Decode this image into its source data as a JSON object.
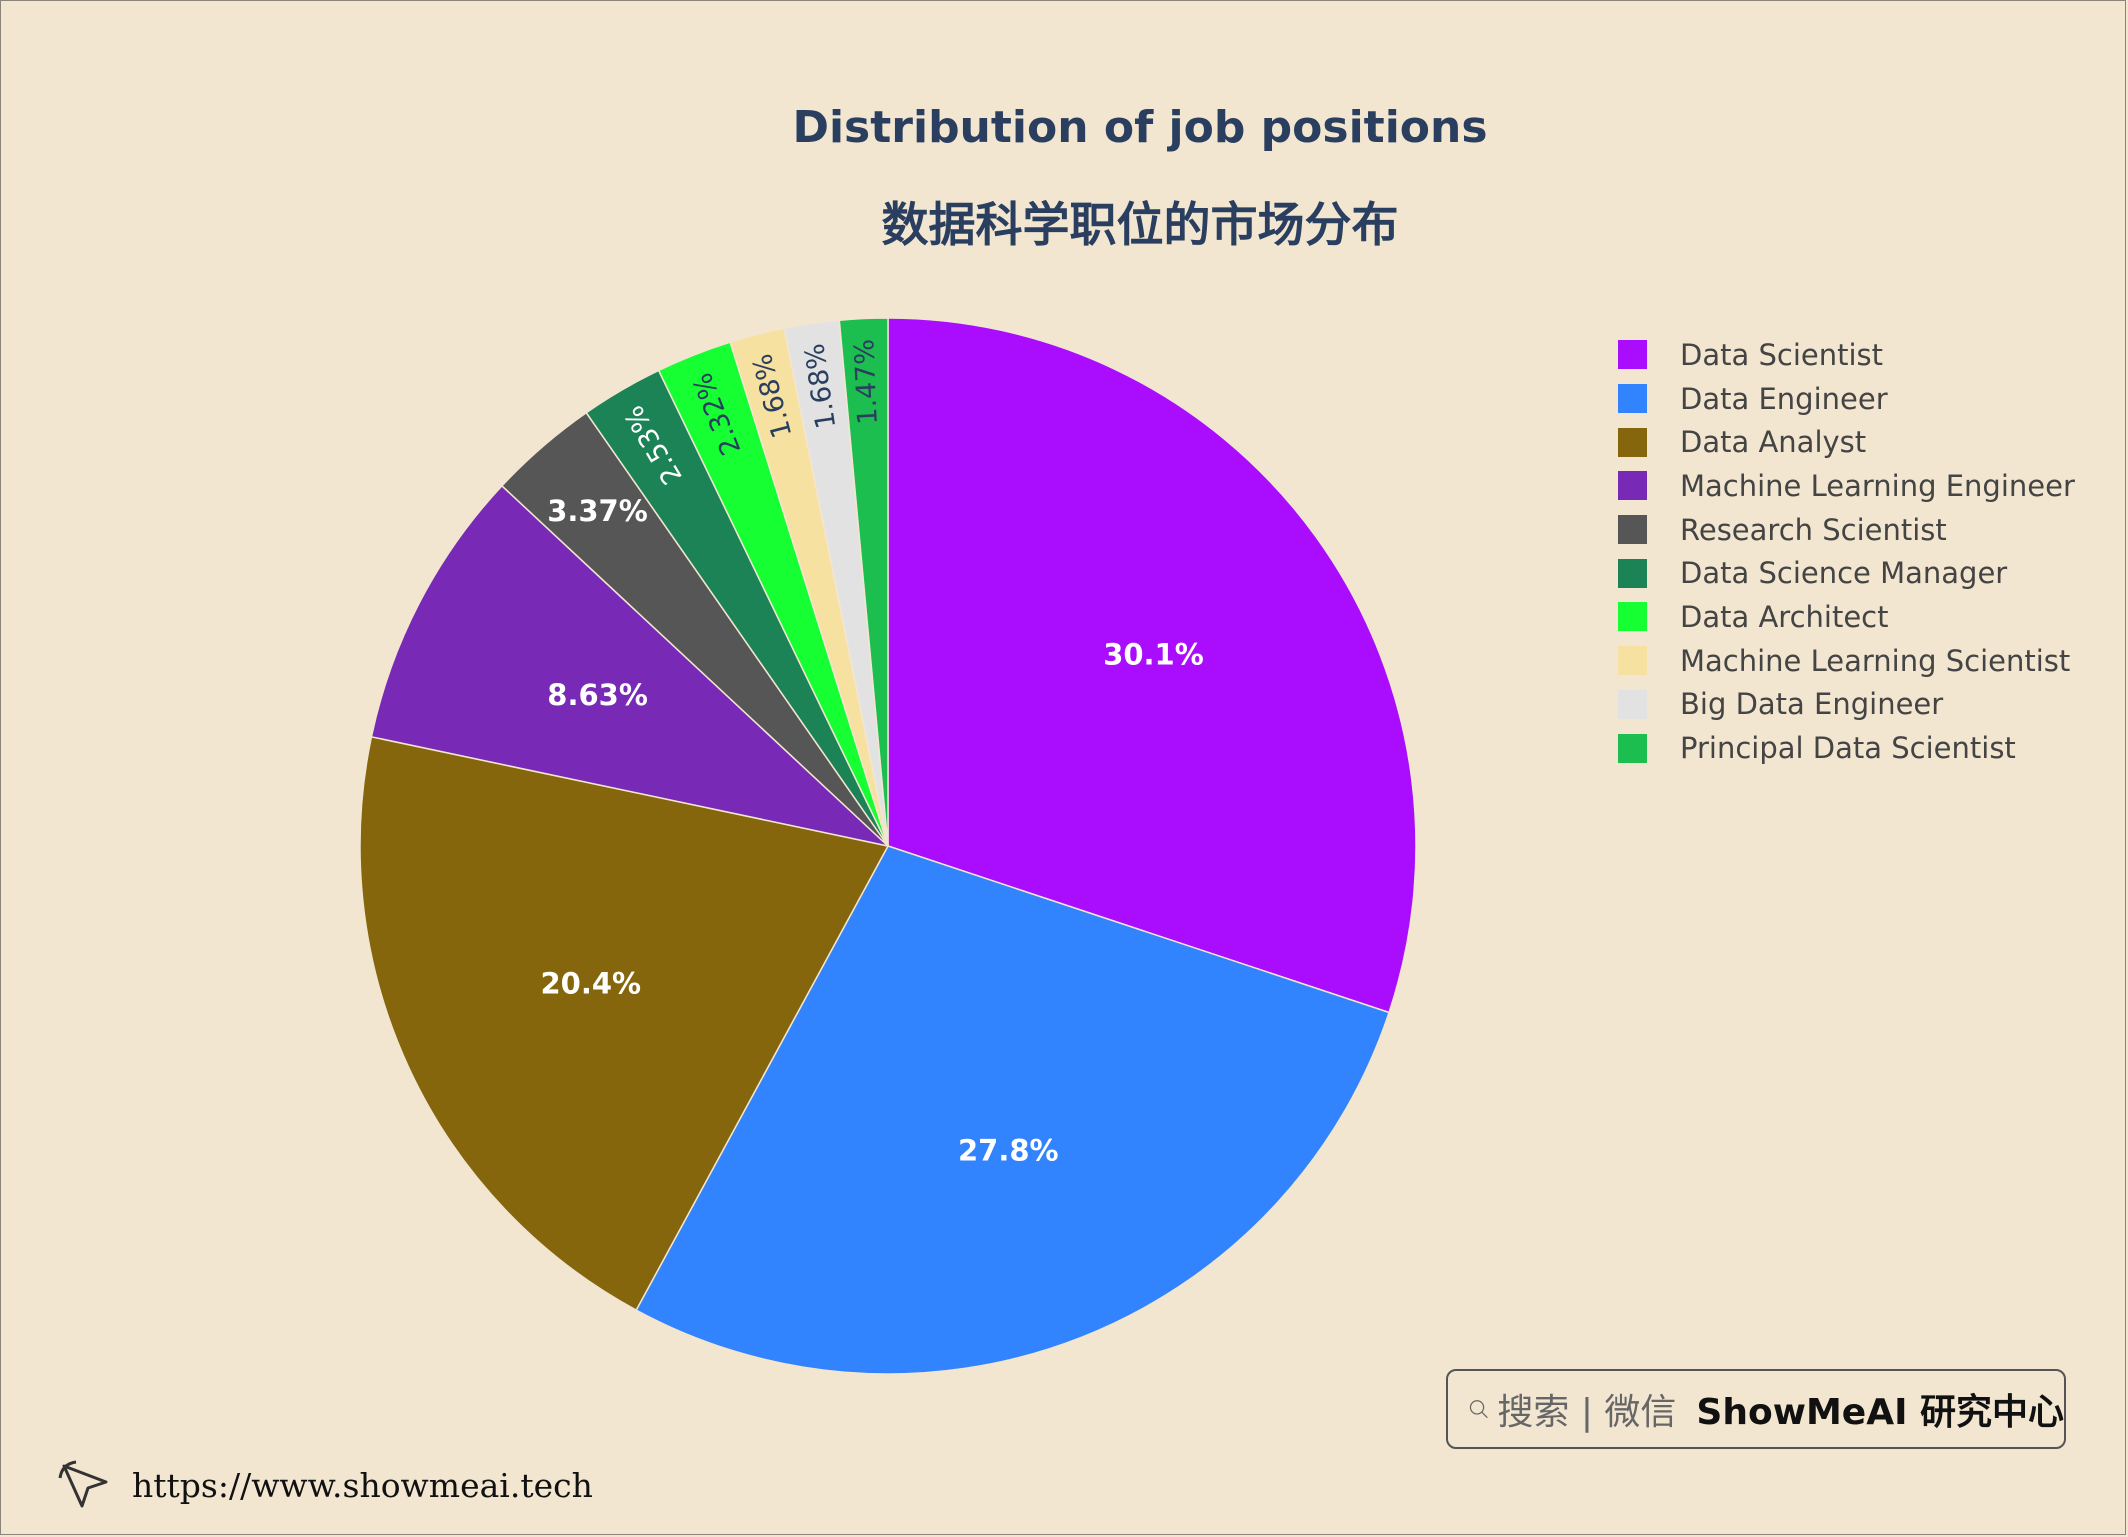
{
  "chart_data": {
    "type": "pie",
    "title": "Distribution of job positions",
    "subtitle": "数据科学职位的市场分布",
    "labels": [
      "Data Scientist",
      "Data Engineer",
      "Data Analyst",
      "Machine Learning Engineer",
      "Research Scientist",
      "Data Science Manager",
      "Data Architect",
      "Machine Learning Scientist",
      "Big Data Engineer",
      "Principal Data Scientist"
    ],
    "values": [
      30.1,
      27.8,
      20.4,
      8.63,
      3.37,
      2.53,
      2.32,
      1.68,
      1.68,
      1.47
    ],
    "text_labels": [
      "30.1%",
      "27.8%",
      "20.4%",
      "8.63%",
      "3.37%",
      "2.53%",
      "2.32%",
      "1.68%",
      "1.68%",
      "1.47%"
    ],
    "colors": [
      "#aa0dfe",
      "#3283fe",
      "#85660d",
      "#782ab6",
      "#565656",
      "#1c8356",
      "#16ff32",
      "#f7e1a0",
      "#e2e2e2",
      "#1cbe4f"
    ],
    "label_colors": [
      "#ffffff",
      "#ffffff",
      "#ffffff",
      "#ffffff",
      "#ffffff",
      "#ffffff",
      "#2a3f5f",
      "#2a3f5f",
      "#2a3f5f",
      "#2a3f5f"
    ],
    "direction": "clockwise",
    "start_angle": "12 o'clock",
    "legend_position": "right"
  },
  "watermark": {
    "search_text": "搜索 | 微信",
    "brand": "ShowMeAI 研究中心",
    "url": "https://www.showmeai.tech"
  }
}
